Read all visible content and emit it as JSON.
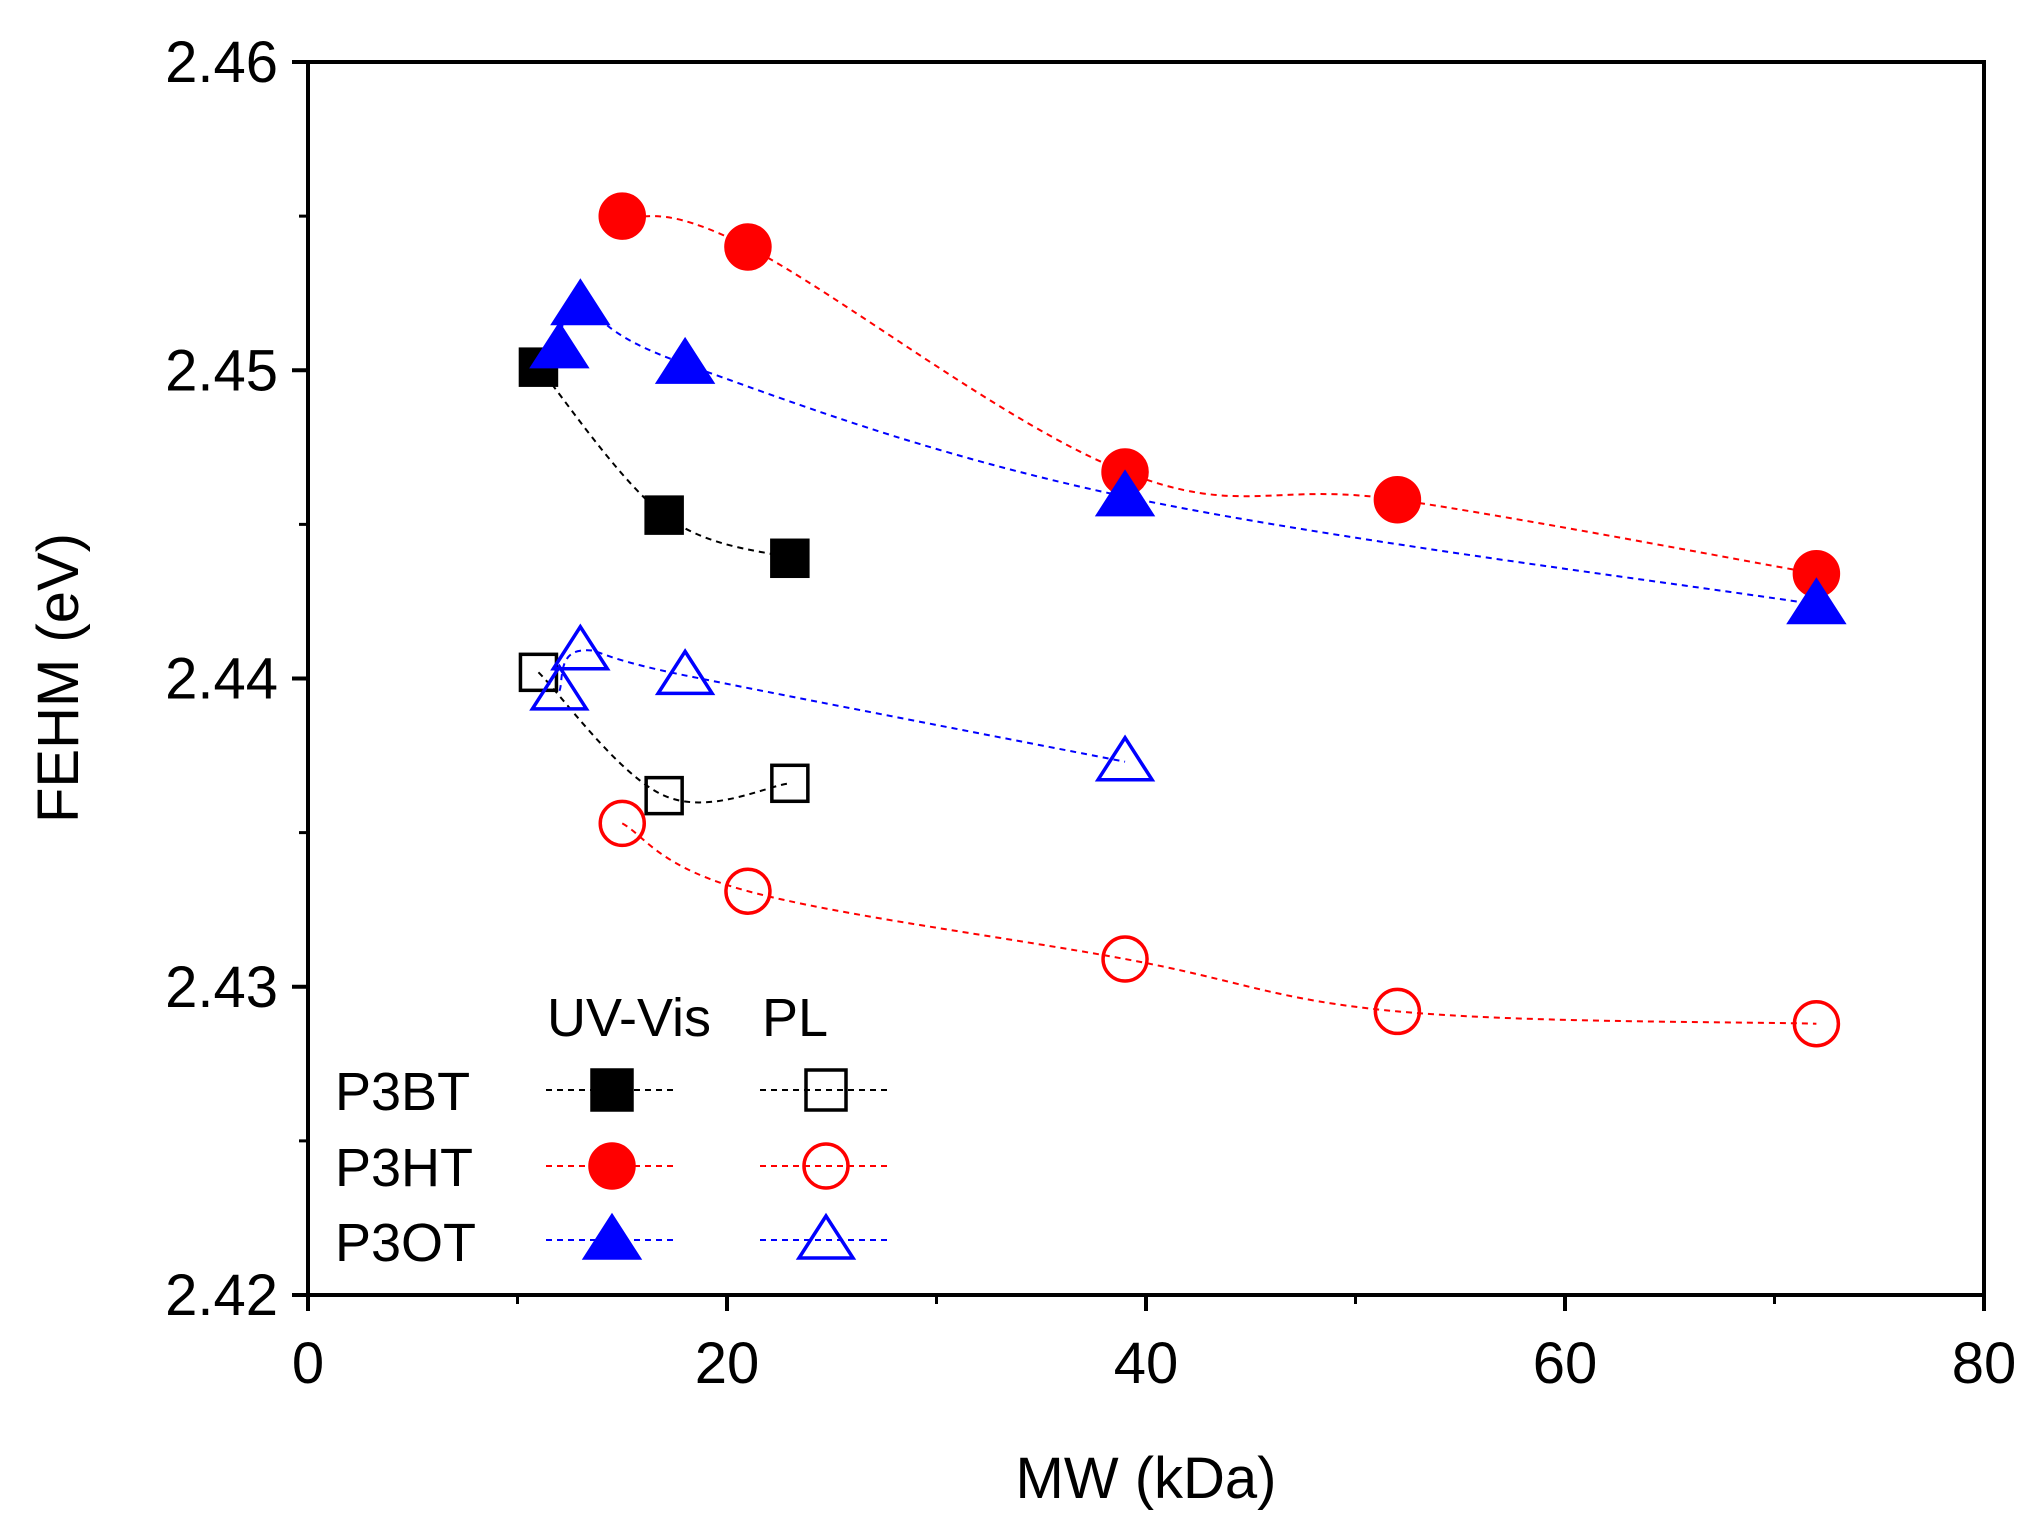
{
  "chart_data": {
    "type": "scatter",
    "title": "",
    "xlabel": "MW (kDa)",
    "ylabel": "FEHM (eV)",
    "xlim": [
      0,
      80
    ],
    "ylim": [
      2.42,
      2.46
    ],
    "xticks": [
      0,
      20,
      40,
      60,
      80
    ],
    "yticks": [
      2.42,
      2.43,
      2.44,
      2.45,
      2.46
    ],
    "x_tick_labels": [
      "0",
      "20",
      "40",
      "60",
      "80"
    ],
    "y_tick_labels": [
      "2.42",
      "2.43",
      "2.44",
      "2.45",
      "2.46"
    ],
    "grid": false,
    "legend": {
      "placement": "bottom-left",
      "column_headers": [
        "UV-Vis",
        "PL"
      ],
      "row_labels": [
        "P3BT",
        "P3HT",
        "P3OT"
      ]
    },
    "series": [
      {
        "name": "P3BT UV-Vis",
        "polymer": "P3BT",
        "method": "UV-Vis",
        "marker": "square",
        "filled": true,
        "color": "#000000",
        "x": [
          11,
          17,
          23
        ],
        "y": [
          2.4501,
          2.4453,
          2.4439
        ]
      },
      {
        "name": "P3HT UV-Vis",
        "polymer": "P3HT",
        "method": "UV-Vis",
        "marker": "circle",
        "filled": true,
        "color": "#ff0000",
        "x": [
          15,
          21,
          39,
          52,
          72
        ],
        "y": [
          2.455,
          2.454,
          2.4467,
          2.4458,
          2.4434
        ]
      },
      {
        "name": "P3OT UV-Vis",
        "polymer": "P3OT",
        "method": "UV-Vis",
        "marker": "triangle",
        "filled": true,
        "color": "#0000ff",
        "x": [
          12,
          13,
          18,
          39,
          72
        ],
        "y": [
          2.4507,
          2.4521,
          2.4502,
          2.4459,
          2.4424
        ]
      },
      {
        "name": "P3BT PL",
        "polymer": "P3BT",
        "method": "PL",
        "marker": "square",
        "filled": false,
        "color": "#000000",
        "x": [
          11,
          17,
          23
        ],
        "y": [
          2.4402,
          2.4362,
          2.4366
        ]
      },
      {
        "name": "P3HT PL",
        "polymer": "P3HT",
        "method": "PL",
        "marker": "circle",
        "filled": false,
        "color": "#ff0000",
        "x": [
          15,
          21,
          39,
          52,
          72
        ],
        "y": [
          2.4353,
          2.4331,
          2.4309,
          2.4292,
          2.4288
        ]
      },
      {
        "name": "P3OT PL",
        "polymer": "P3OT",
        "method": "PL",
        "marker": "triangle",
        "filled": false,
        "color": "#0000ff",
        "x": [
          12,
          13,
          18,
          39
        ],
        "y": [
          2.4396,
          2.4409,
          2.4401,
          2.4373
        ]
      }
    ]
  }
}
